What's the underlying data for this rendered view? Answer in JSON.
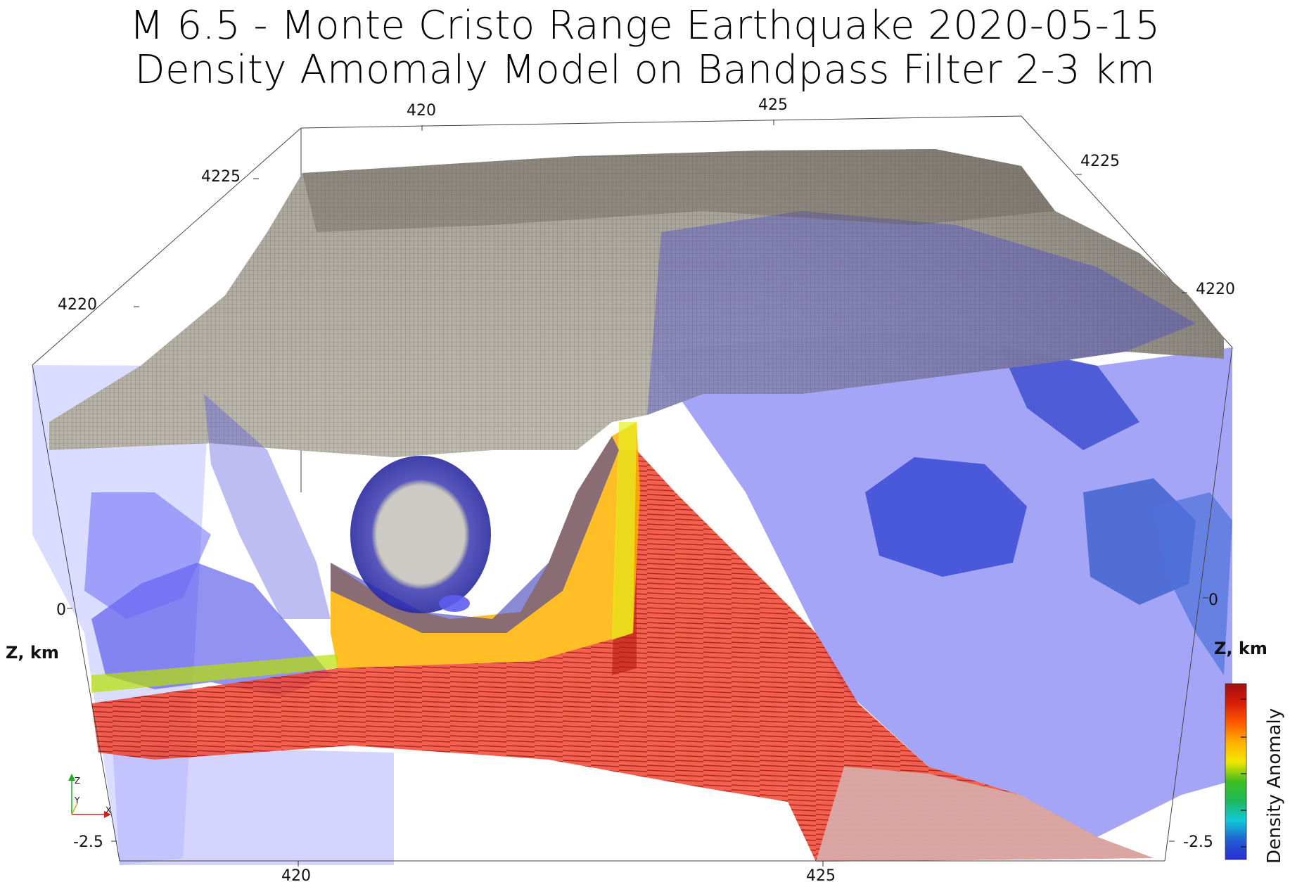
{
  "title": {
    "line1": "M 6.5 - Monte Cristo Range Earthquake 2020-05-15",
    "line2": "Density Amomaly Model on Bandpass Filter 2-3 km"
  },
  "axes": {
    "top_x_ticks": [
      "420",
      "425"
    ],
    "bottom_x_ticks": [
      "420",
      "425"
    ],
    "left_y_ticks": [
      "4225",
      "4220"
    ],
    "right_y_ticks": [
      "4225",
      "4220"
    ],
    "left_z_ticks": [
      "0",
      "-2.5"
    ],
    "right_z_ticks": [
      "0",
      "-2.5"
    ],
    "z_title_left": "Z, km",
    "z_title_right": "Z, km"
  },
  "colorbar": {
    "title": "Density Anomaly",
    "colors": [
      "#2b2bd6",
      "#1f5fd0",
      "#11c9d8",
      "#1fb85a",
      "#3fbf1f",
      "#f2e600",
      "#ffb000",
      "#ff5a00",
      "#d81d08",
      "#9e1010"
    ]
  },
  "orientation_triad": {
    "z": "Z",
    "y": "Y",
    "x": "X"
  }
}
